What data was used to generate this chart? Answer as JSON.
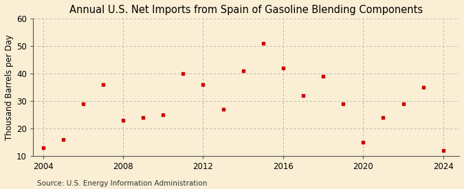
{
  "title": "Annual U.S. Net Imports from Spain of Gasoline Blending Components",
  "ylabel": "Thousand Barrels per Day",
  "source": "Source: U.S. Energy Information Administration",
  "background_color": "#faefd4",
  "marker_color": "#cc0000",
  "years": [
    2004,
    2005,
    2006,
    2007,
    2008,
    2009,
    2010,
    2011,
    2012,
    2013,
    2014,
    2015,
    2016,
    2017,
    2018,
    2019,
    2020,
    2021,
    2022,
    2023,
    2024
  ],
  "values": [
    13,
    16,
    29,
    36,
    23,
    24,
    25,
    40,
    36,
    27,
    41,
    51,
    42,
    32,
    39,
    29,
    15,
    24,
    29,
    35,
    12
  ],
  "xlim": [
    2003.5,
    2024.8
  ],
  "ylim": [
    10,
    60
  ],
  "yticks": [
    10,
    20,
    30,
    40,
    50,
    60
  ],
  "xticks": [
    2004,
    2008,
    2012,
    2016,
    2020,
    2024
  ],
  "grid_color": "#b0b0b0",
  "title_fontsize": 10.5,
  "label_fontsize": 8.5,
  "tick_fontsize": 8.5,
  "source_fontsize": 7.5
}
